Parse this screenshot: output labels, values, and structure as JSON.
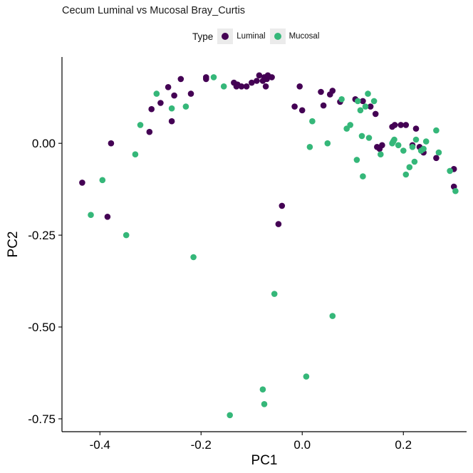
{
  "chart_data": {
    "type": "scatter",
    "title": "Cecum Luminal vs Mucosal Bray_Curtis",
    "xlabel": "PC1",
    "ylabel": "PC2",
    "xlim": [
      -0.475,
      0.325
    ],
    "ylim": [
      -0.785,
      0.235
    ],
    "x_ticks": [
      -0.4,
      -0.2,
      0.0,
      0.2
    ],
    "x_tick_labels": [
      "-0.4",
      "-0.2",
      "0.0",
      "0.2"
    ],
    "y_ticks": [
      0.0,
      -0.25,
      -0.5,
      -0.75
    ],
    "y_tick_labels": [
      "0.00",
      "-0.25",
      "-0.50",
      "-0.75"
    ],
    "grid": false,
    "legend": {
      "title": "Type",
      "position": "top",
      "entries": [
        {
          "label": "Luminal",
          "color": "#440154"
        },
        {
          "label": "Mucosal",
          "color": "#35b779"
        }
      ]
    },
    "series": [
      {
        "name": "Luminal",
        "color": "#440154",
        "points": [
          [
            -0.435,
            -0.107
          ],
          [
            -0.378,
            0.0
          ],
          [
            -0.385,
            -0.2
          ],
          [
            -0.302,
            0.031
          ],
          [
            -0.298,
            0.093
          ],
          [
            -0.28,
            0.11
          ],
          [
            -0.258,
            0.06
          ],
          [
            -0.253,
            0.13
          ],
          [
            -0.265,
            0.153
          ],
          [
            -0.24,
            0.175
          ],
          [
            -0.22,
            0.135
          ],
          [
            -0.19,
            0.18
          ],
          [
            -0.19,
            0.175
          ],
          [
            -0.135,
            0.165
          ],
          [
            -0.13,
            0.155
          ],
          [
            -0.128,
            0.16
          ],
          [
            -0.12,
            0.155
          ],
          [
            -0.11,
            0.155
          ],
          [
            -0.1,
            0.165
          ],
          [
            -0.09,
            0.17
          ],
          [
            -0.085,
            0.185
          ],
          [
            -0.078,
            0.17
          ],
          [
            -0.075,
            0.18
          ],
          [
            -0.07,
            0.175
          ],
          [
            -0.068,
            0.185
          ],
          [
            -0.072,
            0.155
          ],
          [
            -0.06,
            0.18
          ],
          [
            -0.04,
            -0.17
          ],
          [
            -0.047,
            -0.22
          ],
          [
            -0.015,
            0.1
          ],
          [
            -0.005,
            0.155
          ],
          [
            0.0,
            0.09
          ],
          [
            0.037,
            0.14
          ],
          [
            0.042,
            0.103
          ],
          [
            0.055,
            0.133
          ],
          [
            0.06,
            0.143
          ],
          [
            0.075,
            0.113
          ],
          [
            0.105,
            0.12
          ],
          [
            0.12,
            0.115
          ],
          [
            0.135,
            0.1
          ],
          [
            0.145,
            0.08
          ],
          [
            0.148,
            -0.01
          ],
          [
            0.153,
            -0.015
          ],
          [
            0.158,
            -0.005
          ],
          [
            0.178,
            0.045
          ],
          [
            0.183,
            0.05
          ],
          [
            0.195,
            0.05
          ],
          [
            0.205,
            0.05
          ],
          [
            0.218,
            -0.005
          ],
          [
            0.225,
            0.04
          ],
          [
            0.232,
            -0.01
          ],
          [
            0.24,
            -0.025
          ],
          [
            0.265,
            -0.04
          ],
          [
            0.3,
            -0.07
          ],
          [
            0.3,
            -0.118
          ]
        ]
      },
      {
        "name": "Mucosal",
        "color": "#35b779",
        "points": [
          [
            -0.395,
            -0.1
          ],
          [
            -0.418,
            -0.195
          ],
          [
            -0.348,
            -0.25
          ],
          [
            -0.33,
            -0.03
          ],
          [
            -0.32,
            0.05
          ],
          [
            -0.288,
            0.135
          ],
          [
            -0.258,
            0.095
          ],
          [
            -0.23,
            0.1
          ],
          [
            -0.215,
            -0.31
          ],
          [
            -0.175,
            0.18
          ],
          [
            -0.155,
            0.155
          ],
          [
            -0.143,
            -0.74
          ],
          [
            -0.078,
            -0.67
          ],
          [
            -0.075,
            -0.71
          ],
          [
            -0.055,
            -0.41
          ],
          [
            0.008,
            -0.635
          ],
          [
            0.015,
            -0.01
          ],
          [
            0.02,
            0.06
          ],
          [
            0.05,
            0.0
          ],
          [
            0.06,
            -0.47
          ],
          [
            0.078,
            0.12
          ],
          [
            0.088,
            0.04
          ],
          [
            0.095,
            0.05
          ],
          [
            0.108,
            -0.045
          ],
          [
            0.11,
            0.115
          ],
          [
            0.115,
            0.09
          ],
          [
            0.118,
            0.02
          ],
          [
            0.12,
            -0.09
          ],
          [
            0.125,
            0.1
          ],
          [
            0.13,
            0.135
          ],
          [
            0.132,
            0.015
          ],
          [
            0.142,
            0.115
          ],
          [
            0.155,
            -0.03
          ],
          [
            0.178,
            0.0
          ],
          [
            0.18,
            0.005
          ],
          [
            0.182,
            0.01
          ],
          [
            0.19,
            -0.005
          ],
          [
            0.2,
            -0.02
          ],
          [
            0.205,
            -0.085
          ],
          [
            0.212,
            -0.065
          ],
          [
            0.218,
            -0.01
          ],
          [
            0.222,
            -0.05
          ],
          [
            0.225,
            0.01
          ],
          [
            0.235,
            -0.02
          ],
          [
            0.24,
            -0.015
          ],
          [
            0.245,
            0.005
          ],
          [
            0.265,
            0.035
          ],
          [
            0.27,
            -0.025
          ],
          [
            0.292,
            -0.075
          ],
          [
            0.303,
            -0.13
          ]
        ]
      }
    ]
  }
}
